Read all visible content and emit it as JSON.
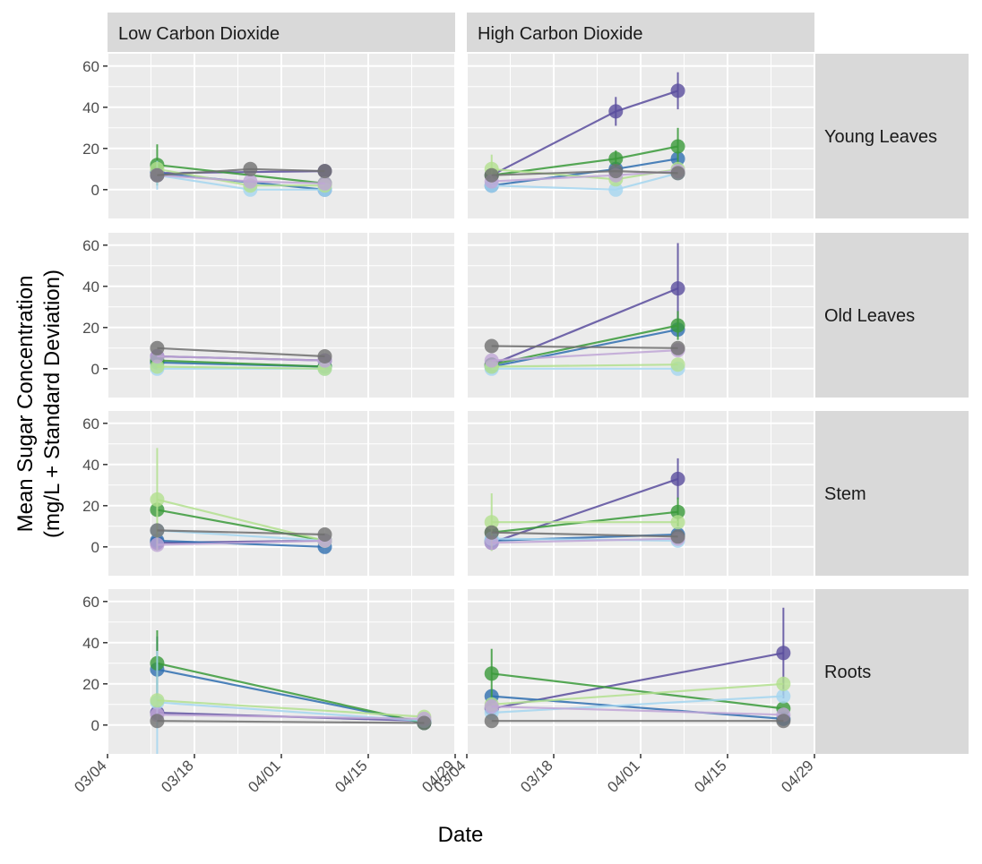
{
  "chart_data": {
    "type": "line",
    "xlabel": "Date",
    "ylabel_lines": [
      "Mean Sugar Concentration",
      "(mg/L + Standard Deviation)"
    ],
    "x_ticks": [
      "03/04",
      "03/18",
      "04/01",
      "04/15",
      "04/29"
    ],
    "x_tick_dates": [
      "2023-03-04",
      "2023-03-18",
      "2023-04-01",
      "2023-04-15",
      "2023-04-29"
    ],
    "xlim": [
      "2023-03-04",
      "2023-04-29"
    ],
    "y_ticks": [
      0,
      20,
      40,
      60
    ],
    "ylim": [
      -14,
      66
    ],
    "grid": true,
    "legend": "none",
    "columns": [
      "Low Carbon Dioxide",
      "High Carbon Dioxide"
    ],
    "rows": [
      "Young Leaves",
      "Old Leaves",
      "Stem",
      "Roots"
    ],
    "series_colors": [
      "#5a4d9e",
      "#2f6fb0",
      "#3a9a3a",
      "#a5d6f0",
      "#b3e08f",
      "#bfa6d6",
      "#707070"
    ],
    "panels": [
      {
        "column": "Low Carbon Dioxide",
        "row": "Young Leaves",
        "series": [
          {
            "color": "#5a4d9e",
            "x": [
              "2023-03-12",
              "2023-04-08"
            ],
            "y": [
              8,
              9
            ],
            "sd": [
              0,
              0
            ]
          },
          {
            "color": "#2f6fb0",
            "x": [
              "2023-03-12",
              "2023-04-08"
            ],
            "y": [
              8,
              0
            ],
            "sd": [
              0,
              0
            ]
          },
          {
            "color": "#3a9a3a",
            "x": [
              "2023-03-12",
              "2023-04-08"
            ],
            "y": [
              12,
              3
            ],
            "sd": [
              10,
              0
            ]
          },
          {
            "color": "#a5d6f0",
            "x": [
              "2023-03-12",
              "2023-03-27",
              "2023-04-08"
            ],
            "y": [
              7,
              0,
              0
            ],
            "sd": [
              7,
              0,
              0
            ]
          },
          {
            "color": "#b3e08f",
            "x": [
              "2023-03-12",
              "2023-03-27",
              "2023-04-08"
            ],
            "y": [
              10,
              2,
              2
            ],
            "sd": [
              0,
              0,
              0
            ]
          },
          {
            "color": "#bfa6d6",
            "x": [
              "2023-03-12",
              "2023-03-27",
              "2023-04-08"
            ],
            "y": [
              7,
              4,
              3
            ],
            "sd": [
              0,
              0,
              0
            ]
          },
          {
            "color": "#707070",
            "x": [
              "2023-03-12",
              "2023-03-27",
              "2023-04-08"
            ],
            "y": [
              7,
              10,
              9
            ],
            "sd": [
              0,
              0,
              0
            ]
          }
        ]
      },
      {
        "column": "High Carbon Dioxide",
        "row": "Young Leaves",
        "series": [
          {
            "color": "#5a4d9e",
            "x": [
              "2023-03-08",
              "2023-03-28",
              "2023-04-07"
            ],
            "y": [
              7,
              38,
              48
            ],
            "sd": [
              0,
              7,
              9
            ]
          },
          {
            "color": "#2f6fb0",
            "x": [
              "2023-03-08",
              "2023-03-28",
              "2023-04-07"
            ],
            "y": [
              2,
              10,
              15
            ],
            "sd": [
              0,
              0,
              0
            ]
          },
          {
            "color": "#3a9a3a",
            "x": [
              "2023-03-08",
              "2023-03-28",
              "2023-04-07"
            ],
            "y": [
              7,
              15,
              21
            ],
            "sd": [
              0,
              4,
              9
            ]
          },
          {
            "color": "#a5d6f0",
            "x": [
              "2023-03-08",
              "2023-03-28",
              "2023-04-07"
            ],
            "y": [
              2,
              0,
              8
            ],
            "sd": [
              0,
              0,
              0
            ]
          },
          {
            "color": "#b3e08f",
            "x": [
              "2023-03-08",
              "2023-03-28",
              "2023-04-07"
            ],
            "y": [
              10,
              5,
              10
            ],
            "sd": [
              7,
              0,
              0
            ]
          },
          {
            "color": "#bfa6d6",
            "x": [
              "2023-03-08",
              "2023-03-28",
              "2023-04-07"
            ],
            "y": [
              4,
              7,
              9
            ],
            "sd": [
              0,
              0,
              0
            ]
          },
          {
            "color": "#707070",
            "x": [
              "2023-03-08",
              "2023-03-28",
              "2023-04-07"
            ],
            "y": [
              7,
              9,
              8
            ],
            "sd": [
              0,
              0,
              0
            ]
          }
        ]
      },
      {
        "column": "Low Carbon Dioxide",
        "row": "Old Leaves",
        "series": [
          {
            "color": "#5a4d9e",
            "x": [
              "2023-03-12",
              "2023-04-08"
            ],
            "y": [
              6,
              4
            ],
            "sd": [
              0,
              0
            ]
          },
          {
            "color": "#2f6fb0",
            "x": [
              "2023-03-12",
              "2023-04-08"
            ],
            "y": [
              3,
              1
            ],
            "sd": [
              0,
              0
            ]
          },
          {
            "color": "#3a9a3a",
            "x": [
              "2023-03-12",
              "2023-04-08"
            ],
            "y": [
              4,
              1
            ],
            "sd": [
              0,
              0
            ]
          },
          {
            "color": "#a5d6f0",
            "x": [
              "2023-03-12",
              "2023-04-08"
            ],
            "y": [
              0,
              0
            ],
            "sd": [
              0,
              0
            ]
          },
          {
            "color": "#b3e08f",
            "x": [
              "2023-03-12",
              "2023-04-08"
            ],
            "y": [
              1,
              0
            ],
            "sd": [
              0,
              0
            ]
          },
          {
            "color": "#bfa6d6",
            "x": [
              "2023-03-12",
              "2023-04-08"
            ],
            "y": [
              6,
              4
            ],
            "sd": [
              0,
              0
            ]
          },
          {
            "color": "#707070",
            "x": [
              "2023-03-12",
              "2023-04-08"
            ],
            "y": [
              10,
              6
            ],
            "sd": [
              0,
              0
            ]
          }
        ]
      },
      {
        "column": "High Carbon Dioxide",
        "row": "Old Leaves",
        "series": [
          {
            "color": "#5a4d9e",
            "x": [
              "2023-03-08",
              "2023-04-07"
            ],
            "y": [
              2,
              39
            ],
            "sd": [
              0,
              22
            ]
          },
          {
            "color": "#2f6fb0",
            "x": [
              "2023-03-08",
              "2023-04-07"
            ],
            "y": [
              1,
              19
            ],
            "sd": [
              0,
              0
            ]
          },
          {
            "color": "#3a9a3a",
            "x": [
              "2023-03-08",
              "2023-04-07"
            ],
            "y": [
              2,
              21
            ],
            "sd": [
              0,
              7
            ]
          },
          {
            "color": "#a5d6f0",
            "x": [
              "2023-03-08",
              "2023-04-07"
            ],
            "y": [
              0,
              0
            ],
            "sd": [
              0,
              0
            ]
          },
          {
            "color": "#b3e08f",
            "x": [
              "2023-03-08",
              "2023-04-07"
            ],
            "y": [
              1,
              2
            ],
            "sd": [
              0,
              0
            ]
          },
          {
            "color": "#bfa6d6",
            "x": [
              "2023-03-08",
              "2023-04-07"
            ],
            "y": [
              4,
              9
            ],
            "sd": [
              0,
              0
            ]
          },
          {
            "color": "#707070",
            "x": [
              "2023-03-08",
              "2023-04-07"
            ],
            "y": [
              11,
              10
            ],
            "sd": [
              0,
              0
            ]
          }
        ]
      },
      {
        "column": "Low Carbon Dioxide",
        "row": "Stem",
        "series": [
          {
            "color": "#5a4d9e",
            "x": [
              "2023-03-12",
              "2023-04-08"
            ],
            "y": [
              2,
              3
            ],
            "sd": [
              0,
              0
            ]
          },
          {
            "color": "#2f6fb0",
            "x": [
              "2023-03-12",
              "2023-04-08"
            ],
            "y": [
              3,
              0
            ],
            "sd": [
              0,
              0
            ]
          },
          {
            "color": "#3a9a3a",
            "x": [
              "2023-03-12",
              "2023-04-08"
            ],
            "y": [
              18,
              3
            ],
            "sd": [
              0,
              0
            ]
          },
          {
            "color": "#a5d6f0",
            "x": [
              "2023-03-12",
              "2023-04-08"
            ],
            "y": [
              8,
              3
            ],
            "sd": [
              0,
              0
            ]
          },
          {
            "color": "#b3e08f",
            "x": [
              "2023-03-12",
              "2023-04-08"
            ],
            "y": [
              23,
              3
            ],
            "sd": [
              25,
              0
            ]
          },
          {
            "color": "#bfa6d6",
            "x": [
              "2023-03-12",
              "2023-04-08"
            ],
            "y": [
              1,
              3
            ],
            "sd": [
              0,
              0
            ]
          },
          {
            "color": "#707070",
            "x": [
              "2023-03-12",
              "2023-04-08"
            ],
            "y": [
              8,
              6
            ],
            "sd": [
              0,
              0
            ]
          }
        ]
      },
      {
        "column": "High Carbon Dioxide",
        "row": "Stem",
        "series": [
          {
            "color": "#5a4d9e",
            "x": [
              "2023-03-08",
              "2023-04-07"
            ],
            "y": [
              2,
              33
            ],
            "sd": [
              0,
              10
            ]
          },
          {
            "color": "#2f6fb0",
            "x": [
              "2023-03-08",
              "2023-04-07"
            ],
            "y": [
              3,
              6
            ],
            "sd": [
              0,
              0
            ]
          },
          {
            "color": "#3a9a3a",
            "x": [
              "2023-03-08",
              "2023-04-07"
            ],
            "y": [
              7,
              17
            ],
            "sd": [
              0,
              7
            ]
          },
          {
            "color": "#a5d6f0",
            "x": [
              "2023-03-08",
              "2023-04-07"
            ],
            "y": [
              4,
              3
            ],
            "sd": [
              0,
              0
            ]
          },
          {
            "color": "#b3e08f",
            "x": [
              "2023-03-08",
              "2023-04-07"
            ],
            "y": [
              12,
              12
            ],
            "sd": [
              14,
              0
            ]
          },
          {
            "color": "#bfa6d6",
            "x": [
              "2023-03-08",
              "2023-04-07"
            ],
            "y": [
              2,
              4
            ],
            "sd": [
              0,
              0
            ]
          },
          {
            "color": "#707070",
            "x": [
              "2023-03-08",
              "2023-04-07"
            ],
            "y": [
              7,
              5
            ],
            "sd": [
              0,
              0
            ]
          }
        ]
      },
      {
        "column": "Low Carbon Dioxide",
        "row": "Roots",
        "series": [
          {
            "color": "#5a4d9e",
            "x": [
              "2023-03-12",
              "2023-04-24"
            ],
            "y": [
              6,
              2
            ],
            "sd": [
              0,
              0
            ]
          },
          {
            "color": "#2f6fb0",
            "x": [
              "2023-03-12",
              "2023-04-24"
            ],
            "y": [
              27,
              1
            ],
            "sd": [
              16,
              0
            ]
          },
          {
            "color": "#3a9a3a",
            "x": [
              "2023-03-12",
              "2023-04-24"
            ],
            "y": [
              30,
              1
            ],
            "sd": [
              16,
              0
            ]
          },
          {
            "color": "#a5d6f0",
            "x": [
              "2023-03-12",
              "2023-04-24"
            ],
            "y": [
              11,
              2
            ],
            "sd": [
              25,
              0
            ]
          },
          {
            "color": "#b3e08f",
            "x": [
              "2023-03-12",
              "2023-04-24"
            ],
            "y": [
              12,
              4
            ],
            "sd": [
              0,
              0
            ]
          },
          {
            "color": "#bfa6d6",
            "x": [
              "2023-03-12",
              "2023-04-24"
            ],
            "y": [
              5,
              3
            ],
            "sd": [
              0,
              0
            ]
          },
          {
            "color": "#707070",
            "x": [
              "2023-03-12",
              "2023-04-24"
            ],
            "y": [
              2,
              1
            ],
            "sd": [
              0,
              0
            ]
          }
        ]
      },
      {
        "column": "High Carbon Dioxide",
        "row": "Roots",
        "series": [
          {
            "color": "#5a4d9e",
            "x": [
              "2023-03-08",
              "2023-04-24"
            ],
            "y": [
              8,
              35
            ],
            "sd": [
              0,
              22
            ]
          },
          {
            "color": "#2f6fb0",
            "x": [
              "2023-03-08",
              "2023-04-24"
            ],
            "y": [
              14,
              3
            ],
            "sd": [
              0,
              0
            ]
          },
          {
            "color": "#3a9a3a",
            "x": [
              "2023-03-08",
              "2023-04-24"
            ],
            "y": [
              25,
              8
            ],
            "sd": [
              12,
              0
            ]
          },
          {
            "color": "#a5d6f0",
            "x": [
              "2023-03-08",
              "2023-04-24"
            ],
            "y": [
              6,
              14
            ],
            "sd": [
              0,
              0
            ]
          },
          {
            "color": "#b3e08f",
            "x": [
              "2023-03-08",
              "2023-04-24"
            ],
            "y": [
              10,
              20
            ],
            "sd": [
              0,
              0
            ]
          },
          {
            "color": "#bfa6d6",
            "x": [
              "2023-03-08",
              "2023-04-24"
            ],
            "y": [
              9,
              5
            ],
            "sd": [
              0,
              0
            ]
          },
          {
            "color": "#707070",
            "x": [
              "2023-03-08",
              "2023-04-24"
            ],
            "y": [
              2,
              2
            ],
            "sd": [
              0,
              0
            ]
          }
        ]
      }
    ]
  }
}
